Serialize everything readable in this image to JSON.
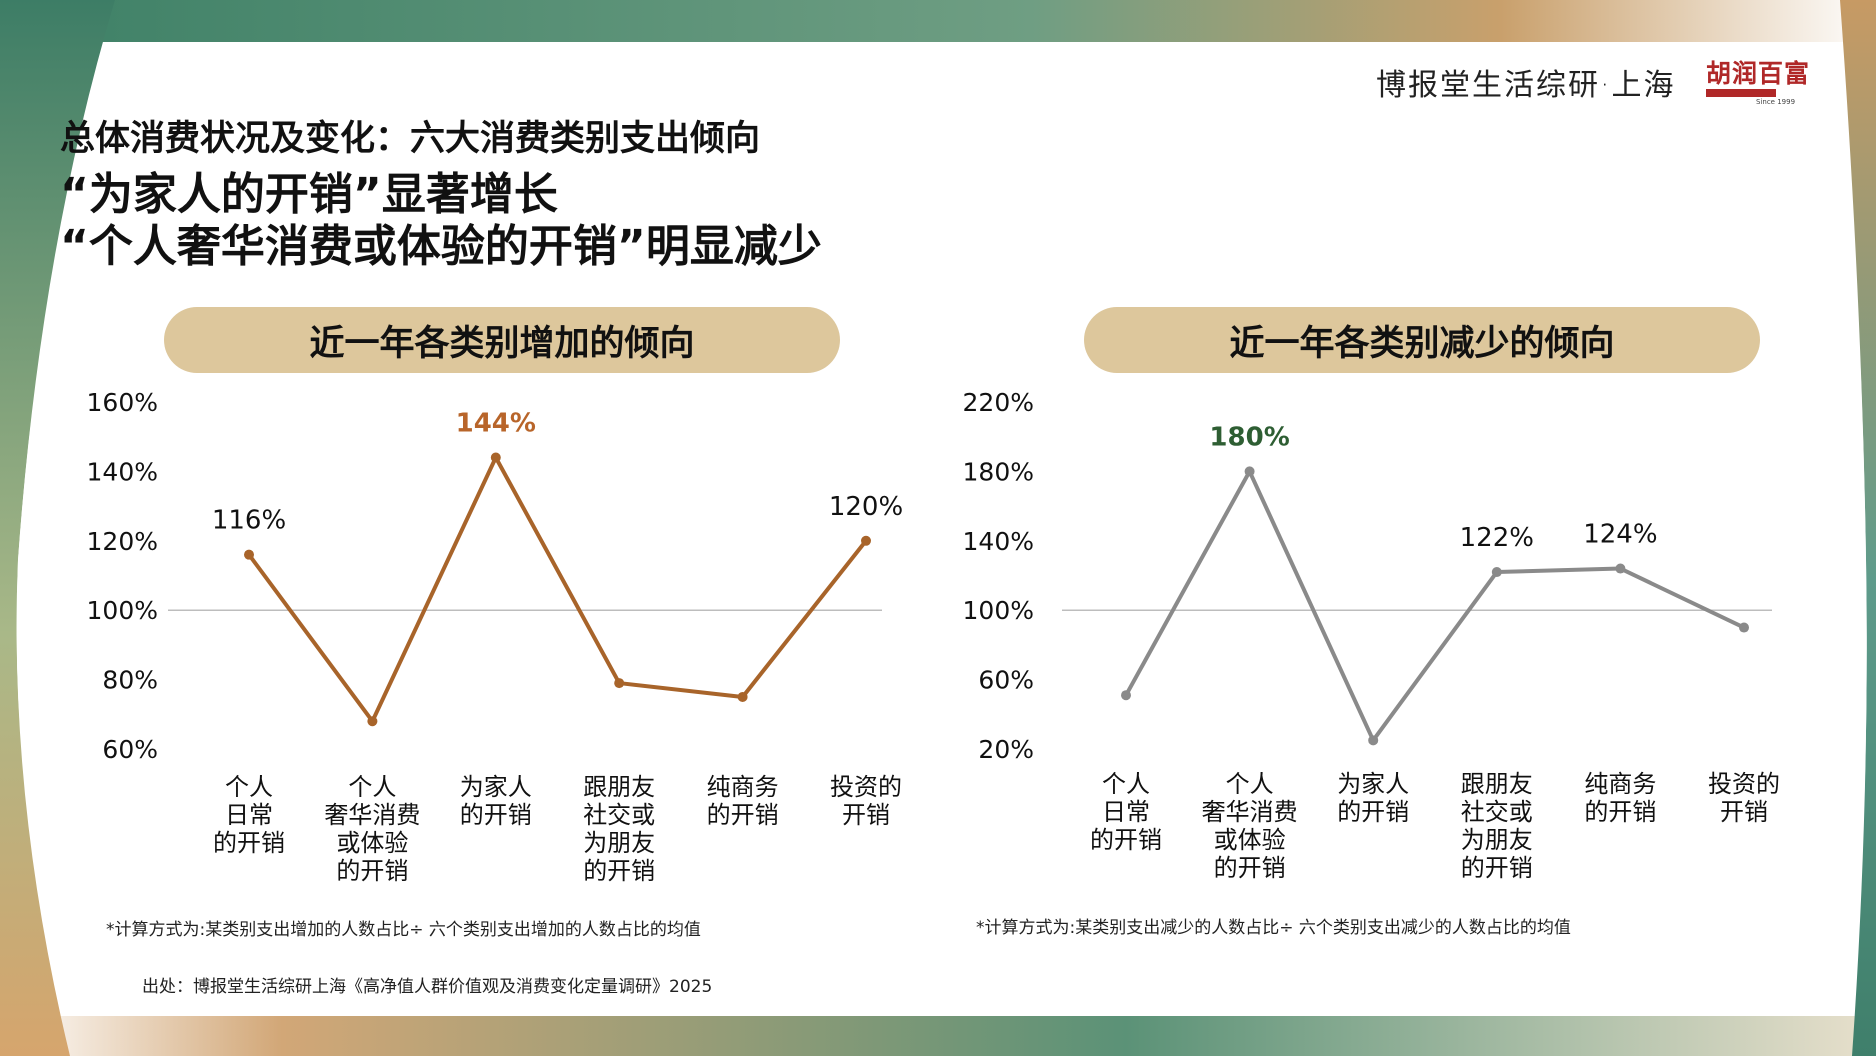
{
  "brand": {
    "text": "博报堂生活综研·上海",
    "logo_text": "胡润百富",
    "logo_sub": "Since 1999"
  },
  "titles": {
    "line1": "总体消费状况及变化：六大消费类别支出倾向",
    "line2": "“为家人的开销”显著增长",
    "line3": "“个人奢华消费或体验的开销”明显减少"
  },
  "panels": {
    "left_title": "近一年各类别增加的倾向",
    "right_title": "近一年各类别减少的倾向"
  },
  "notes": {
    "left": "*计算方式为:某类别支出增加的人数占比÷ 六个类别支出增加的人数占比的均值",
    "right": "*计算方式为:某类别支出减少的人数占比÷ 六个类别支出减少的人数占比的均值",
    "source": "出处：博报堂生活综研上海《高净值人群价值观及消费变化定量调研》2025"
  },
  "colors": {
    "left_line": "#a8642a",
    "left_highlight": "#b8652a",
    "right_line": "#8a8a8a",
    "right_highlight": "#2e5e33",
    "pill": "#ddc79c",
    "frame_green": "#4f8c6c",
    "frame_tan": "#c9a46f",
    "frame_teal": "#5e9b8b"
  },
  "chart_data": [
    {
      "type": "line",
      "title": "近一年各类别增加的倾向",
      "categories": [
        [
          "个人",
          "日常",
          "的开销"
        ],
        [
          "个人",
          "奢华消费",
          "或体验",
          "的开销"
        ],
        [
          "为家人",
          "的开销"
        ],
        [
          "跟朋友",
          "社交或",
          "为朋友",
          "的开销"
        ],
        [
          "纯商务",
          "的开销"
        ],
        [
          "投资的",
          "开销"
        ]
      ],
      "values": [
        116,
        68,
        144,
        79,
        75,
        120
      ],
      "labels": [
        "116%",
        "",
        "144%",
        "",
        "",
        "120%"
      ],
      "highlight_index": 2,
      "ylim": [
        60,
        160
      ],
      "yticks": [
        "160%",
        "140%",
        "120%",
        "100%",
        "80%",
        "60%"
      ],
      "reference_line": 100,
      "grid": false
    },
    {
      "type": "line",
      "title": "近一年各类别减少的倾向",
      "categories": [
        [
          "个人",
          "日常",
          "的开销"
        ],
        [
          "个人",
          "奢华消费",
          "或体验",
          "的开销"
        ],
        [
          "为家人",
          "的开销"
        ],
        [
          "跟朋友",
          "社交或",
          "为朋友",
          "的开销"
        ],
        [
          "纯商务",
          "的开销"
        ],
        [
          "投资的",
          "开销"
        ]
      ],
      "values": [
        51,
        180,
        25,
        122,
        124,
        90
      ],
      "labels": [
        "",
        "180%",
        "",
        "122%",
        "124%",
        ""
      ],
      "highlight_index": 1,
      "ylim": [
        20,
        220
      ],
      "yticks": [
        "220%",
        "180%",
        "140%",
        "100%",
        "60%",
        "20%"
      ],
      "reference_line": 100,
      "grid": false
    }
  ]
}
